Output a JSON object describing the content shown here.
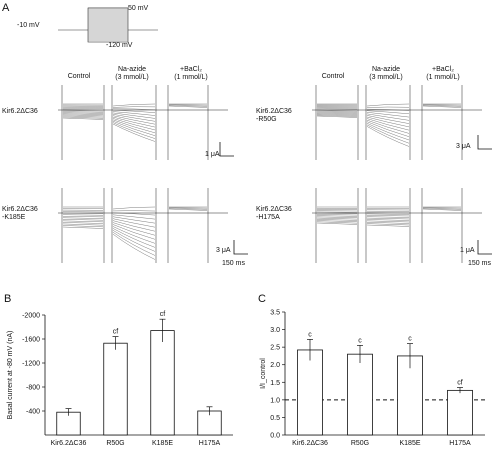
{
  "panels": {
    "a": "A",
    "b": "B",
    "c": "C"
  },
  "protocol": {
    "v_top": "50 mV",
    "v_hold": "-10 mV",
    "v_bottom": "-120 mV"
  },
  "conditions": {
    "control": "Control",
    "azide_line1": "Na-azide",
    "azide_line2": "(3 mmol/L)",
    "ba_line1": "+BaCl₂",
    "ba_line2": "(1 mmol/L)"
  },
  "traces": [
    {
      "id": "t1",
      "name_line1": "Kir6.2ΔC36",
      "name_line2": "",
      "scale": "1 μA",
      "time": ""
    },
    {
      "id": "t2",
      "name_line1": "Kir6.2ΔC36",
      "name_line2": "-R50G",
      "scale": "3 μA",
      "time": ""
    },
    {
      "id": "t3",
      "name_line1": "Kir6.2ΔC36",
      "name_line2": "-K185E",
      "scale": "3 μA",
      "time": "150 ms"
    },
    {
      "id": "t4",
      "name_line1": "Kir6.2ΔC36",
      "name_line2": "-H175A",
      "scale": "1 μA",
      "time": "150 ms"
    }
  ],
  "chart_data": [
    {
      "type": "bar",
      "panel": "B",
      "ylabel": "Basal current at -80 mV (nA)",
      "categories": [
        "Kir6.2ΔC36",
        "R50G",
        "K185E",
        "H175A"
      ],
      "values": [
        -380,
        -1530,
        -1740,
        -400
      ],
      "errors": [
        60,
        110,
        190,
        70
      ],
      "annotations": [
        "",
        "cf",
        "cf",
        ""
      ],
      "yticks": [
        -400,
        -800,
        -1200,
        -1600,
        -2000
      ],
      "ylim": [
        0,
        -2000
      ],
      "inverted_axis": true
    },
    {
      "type": "bar",
      "panel": "C",
      "ylabel": "I/I_control",
      "categories": [
        "Kir6.2ΔC36",
        "R50G",
        "K185E",
        "H175A"
      ],
      "values": [
        2.42,
        2.3,
        2.25,
        1.27
      ],
      "errors": [
        0.3,
        0.25,
        0.35,
        0.08
      ],
      "annotations": [
        "c",
        "c",
        "c",
        "cf"
      ],
      "yticks": [
        0.0,
        0.5,
        1.0,
        1.5,
        2.0,
        2.5,
        3.0,
        3.5
      ],
      "ylim": [
        0,
        3.5
      ],
      "reference_line": 1.0
    }
  ]
}
